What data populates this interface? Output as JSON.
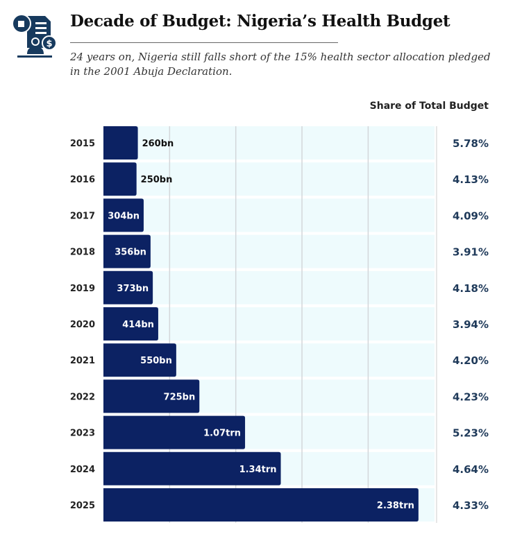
{
  "header": {
    "title": "Decade of Budget: Nigeria’s Health Budget",
    "subtitle": "24 years on, Nigeria still falls short of the 15% health sector allocation pledged in the 2001 Abuja Declaration.",
    "logo": "budget-document-icon"
  },
  "chart_data": {
    "type": "bar",
    "orientation": "horizontal",
    "title": "Decade of Budget: Nigeria’s Health Budget",
    "categories": [
      "2015",
      "2016",
      "2017",
      "2018",
      "2019",
      "2020",
      "2021",
      "2022",
      "2023",
      "2024",
      "2025"
    ],
    "values_trn": [
      0.26,
      0.25,
      0.304,
      0.356,
      0.373,
      0.414,
      0.55,
      0.725,
      1.07,
      1.34,
      2.38
    ],
    "value_labels": [
      "260bn",
      "250bn",
      "304bn",
      "356bn",
      "373bn",
      "414bn",
      "550bn",
      "725bn",
      "1.07trn",
      "1.34trn",
      "2.38trn"
    ],
    "share_header": "Share of Total Budget",
    "share_labels": [
      "5.78%",
      "4.13%",
      "4.09%",
      "3.91%",
      "4.18%",
      "3.94%",
      "4.20%",
      "4.23%",
      "5.23%",
      "4.64%",
      "4.33%"
    ],
    "xlim": [
      0,
      2.5
    ],
    "grid_step": 0.5,
    "colors": {
      "bar": "#0c2263",
      "track": "#eefbfd",
      "grid": "#d3d7da",
      "share": "#1f3a5a"
    }
  }
}
